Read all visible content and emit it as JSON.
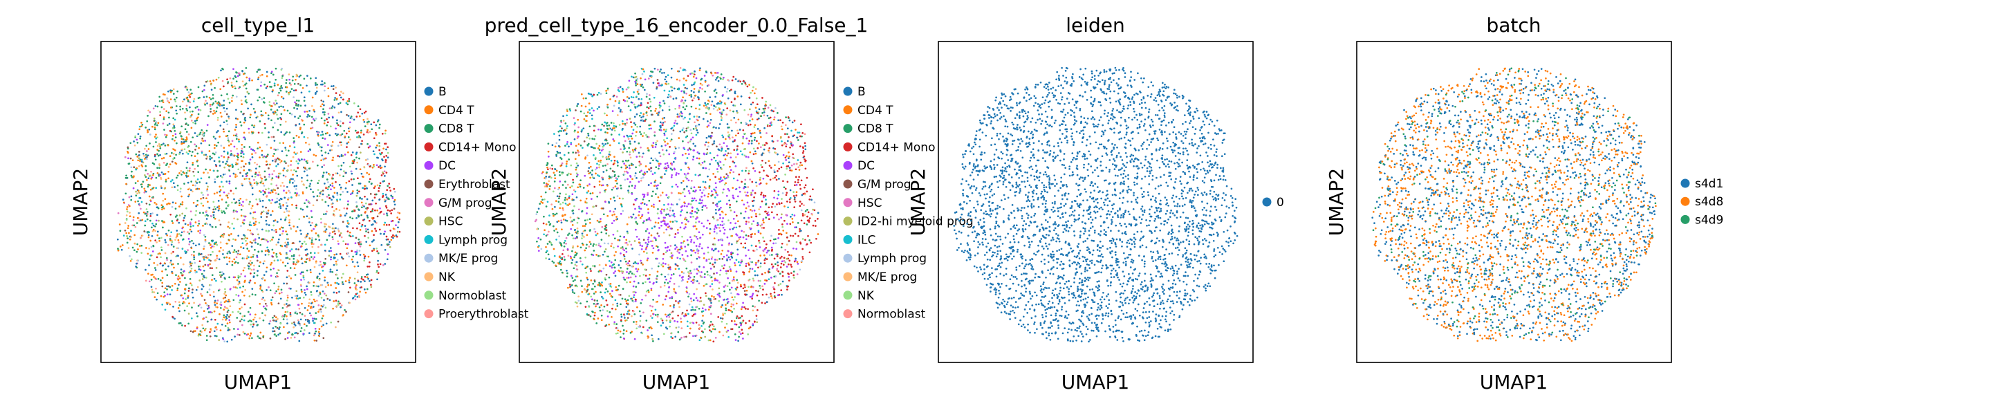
{
  "chart_data": [
    {
      "type": "scatter",
      "title": "cell_type_l1",
      "xlabel": "UMAP1",
      "ylabel": "UMAP2",
      "grid": false,
      "legend_position": "right",
      "series": [
        {
          "name": "B",
          "color": "#1f77b4"
        },
        {
          "name": "CD4 T",
          "color": "#ff7f0e"
        },
        {
          "name": "CD8 T",
          "color": "#279e68"
        },
        {
          "name": "CD14+ Mono",
          "color": "#d62728"
        },
        {
          "name": "DC",
          "color": "#aa40fc"
        },
        {
          "name": "Erythroblast",
          "color": "#8c564b"
        },
        {
          "name": "G/M prog",
          "color": "#e377c2"
        },
        {
          "name": "HSC",
          "color": "#b5bd61"
        },
        {
          "name": "Lymph prog",
          "color": "#17becf"
        },
        {
          "name": "MK/E prog",
          "color": "#aec7e8"
        },
        {
          "name": "NK",
          "color": "#ffbb78"
        },
        {
          "name": "Normoblast",
          "color": "#98df8a"
        },
        {
          "name": "Proerythroblast",
          "color": "#ff9896"
        }
      ]
    },
    {
      "type": "scatter",
      "title": "pred_cell_type_16_encoder_0.0_False_1",
      "xlabel": "UMAP1",
      "ylabel": "UMAP2",
      "grid": false,
      "legend_position": "right",
      "series": [
        {
          "name": "B",
          "color": "#1f77b4"
        },
        {
          "name": "CD4 T",
          "color": "#ff7f0e"
        },
        {
          "name": "CD8 T",
          "color": "#279e68"
        },
        {
          "name": "CD14+ Mono",
          "color": "#d62728"
        },
        {
          "name": "DC",
          "color": "#aa40fc"
        },
        {
          "name": "G/M prog",
          "color": "#8c564b"
        },
        {
          "name": "HSC",
          "color": "#e377c2"
        },
        {
          "name": "ID2-hi myeloid prog",
          "color": "#b5bd61"
        },
        {
          "name": "ILC",
          "color": "#17becf"
        },
        {
          "name": "Lymph prog",
          "color": "#aec7e8"
        },
        {
          "name": "MK/E prog",
          "color": "#ffbb78"
        },
        {
          "name": "NK",
          "color": "#98df8a"
        },
        {
          "name": "Normoblast",
          "color": "#ff9896"
        }
      ]
    },
    {
      "type": "scatter",
      "title": "leiden",
      "xlabel": "UMAP1",
      "ylabel": "UMAP2",
      "grid": false,
      "legend_position": "right",
      "series": [
        {
          "name": "0",
          "color": "#1f77b4"
        }
      ]
    },
    {
      "type": "scatter",
      "title": "batch",
      "xlabel": "UMAP1",
      "ylabel": "UMAP2",
      "grid": false,
      "legend_position": "right",
      "series": [
        {
          "name": "s4d1",
          "color": "#1f77b4"
        },
        {
          "name": "s4d8",
          "color": "#ff7f0e"
        },
        {
          "name": "s4d9",
          "color": "#279e68"
        }
      ]
    }
  ]
}
